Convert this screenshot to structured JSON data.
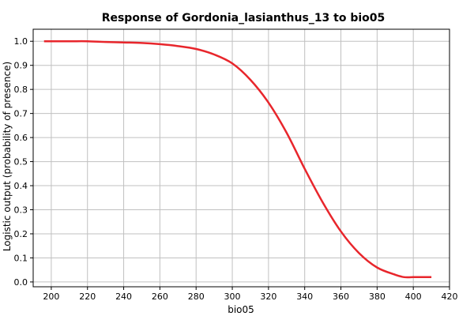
{
  "chart_data": {
    "type": "line",
    "title": "Response of Gordonia_lasianthus_13 to bio05",
    "xlabel": "bio05",
    "ylabel": "Logistic output (probability of presence)",
    "xlim": [
      190,
      420
    ],
    "ylim": [
      -0.02,
      1.05
    ],
    "x_ticks": [
      200,
      220,
      240,
      260,
      280,
      300,
      320,
      340,
      360,
      380,
      400,
      420
    ],
    "x_tick_labels": [
      "200",
      "220",
      "240",
      "260",
      "280",
      "300",
      "320",
      "340",
      "360",
      "380",
      "400",
      "420"
    ],
    "y_ticks": [
      0.0,
      0.1,
      0.2,
      0.3,
      0.4,
      0.5,
      0.6,
      0.7,
      0.8,
      0.9,
      1.0
    ],
    "y_tick_labels": [
      "0.0",
      "0.1",
      "0.2",
      "0.3",
      "0.4",
      "0.5",
      "0.6",
      "0.7",
      "0.8",
      "0.9",
      "1.0"
    ],
    "grid": true,
    "series": [
      {
        "color": "#e8262c",
        "x": [
          196,
          210,
          220,
          230,
          240,
          250,
          260,
          270,
          280,
          290,
          300,
          310,
          320,
          330,
          340,
          350,
          360,
          370,
          380,
          390,
          395,
          400,
          410
        ],
        "y": [
          1.0,
          1.0,
          1.0,
          0.997,
          0.995,
          0.993,
          0.988,
          0.98,
          0.968,
          0.945,
          0.908,
          0.84,
          0.745,
          0.62,
          0.47,
          0.33,
          0.21,
          0.12,
          0.06,
          0.03,
          0.02,
          0.02,
          0.02
        ]
      }
    ]
  }
}
